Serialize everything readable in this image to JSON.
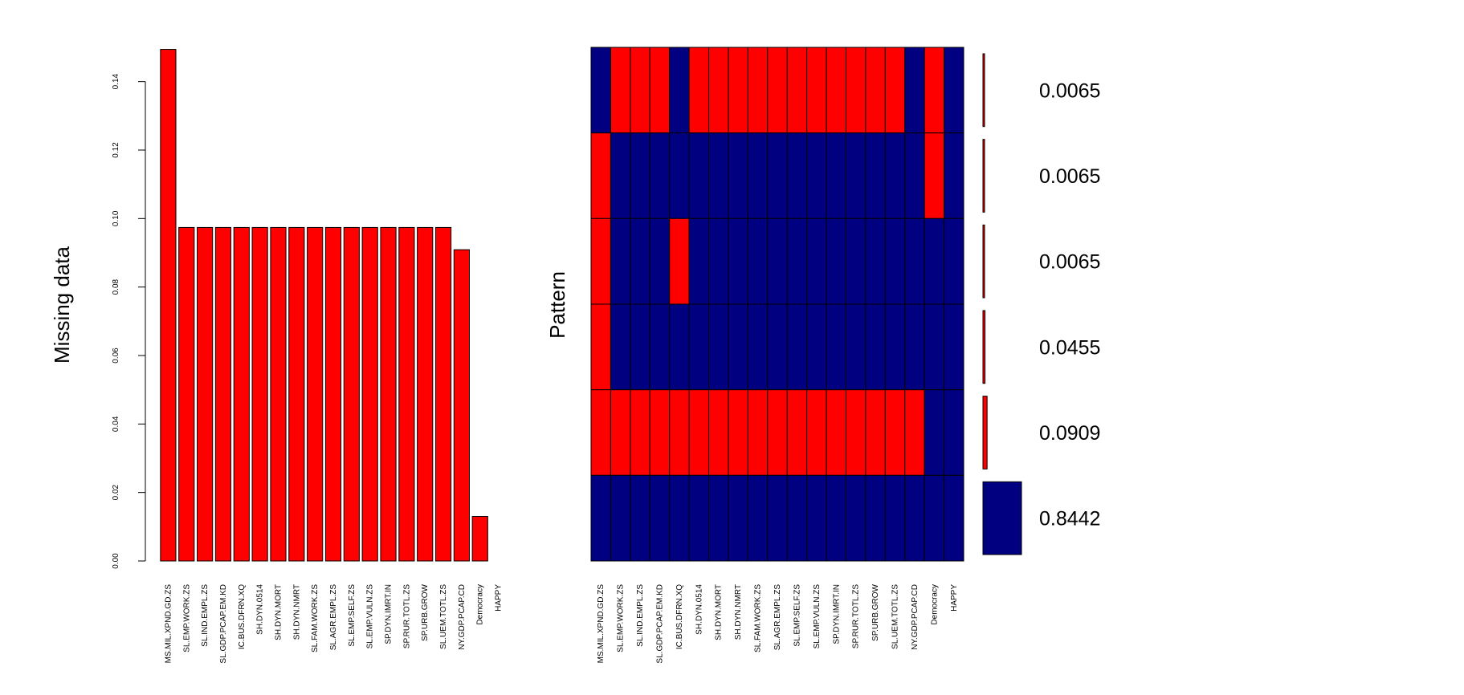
{
  "colors": {
    "missing": "#ff0000",
    "observed": "#000080",
    "border": "#000000",
    "background": "#ffffff"
  },
  "chart_data": [
    {
      "type": "bar",
      "ylabel": "Missing data",
      "xlabel": "",
      "ylim": [
        0,
        0.15
      ],
      "yticks": [
        "0.00",
        "0.02",
        "0.04",
        "0.06",
        "0.08",
        "0.10",
        "0.12",
        "0.14"
      ],
      "categories": [
        "MS.MIL.XPND.GD.ZS",
        "SL.EMP.WORK.ZS",
        "SL.IND.EMPL.ZS",
        "SL.GDP.PCAP.EM.KD",
        "IC.BUS.DFRN.XQ",
        "SH.DYN.0514",
        "SH.DYN.MORT",
        "SH.DYN.NMRT",
        "SL.FAM.WORK.ZS",
        "SL.AGR.EMPL.ZS",
        "SL.EMP.SELF.ZS",
        "SL.EMP.VULN.ZS",
        "SP.DYN.IMRT.IN",
        "SP.RUR.TOTL.ZS",
        "SP.URB.GROW",
        "SL.UEM.TOTL.ZS",
        "NY.GDP.PCAP.CD",
        "Democracy",
        "HAPPY"
      ],
      "values": [
        0.1494,
        0.0974,
        0.0974,
        0.0974,
        0.0974,
        0.0974,
        0.0974,
        0.0974,
        0.0974,
        0.0974,
        0.0974,
        0.0974,
        0.0974,
        0.0974,
        0.0974,
        0.0974,
        0.0909,
        0.013,
        0.0
      ]
    },
    {
      "type": "heatmap",
      "ylabel": "Pattern",
      "xlabel": "",
      "columns": [
        "MS.MIL.XPND.GD.ZS",
        "SL.EMP.WORK.ZS",
        "SL.IND.EMPL.ZS",
        "SL.GDP.PCAP.EM.KD",
        "IC.BUS.DFRN.XQ",
        "SH.DYN.0514",
        "SH.DYN.MORT",
        "SH.DYN.NMRT",
        "SL.FAM.WORK.ZS",
        "SL.AGR.EMPL.ZS",
        "SL.EMP.SELF.ZS",
        "SL.EMP.VULN.ZS",
        "SP.DYN.IMRT.IN",
        "SP.RUR.TOTL.ZS",
        "SP.URB.GROW",
        "SL.UEM.TOTL.ZS",
        "NY.GDP.PCAP.CD",
        "Democracy",
        "HAPPY"
      ],
      "patterns": [
        {
          "proportion": 0.0065,
          "label": "0.0065",
          "missing": [
            0,
            1,
            1,
            1,
            0,
            1,
            1,
            1,
            1,
            1,
            1,
            1,
            1,
            1,
            1,
            1,
            0,
            1,
            0
          ]
        },
        {
          "proportion": 0.0065,
          "label": "0.0065",
          "missing": [
            1,
            0,
            0,
            0,
            0,
            0,
            0,
            0,
            0,
            0,
            0,
            0,
            0,
            0,
            0,
            0,
            0,
            1,
            0
          ]
        },
        {
          "proportion": 0.0065,
          "label": "0.0065",
          "missing": [
            1,
            0,
            0,
            0,
            1,
            0,
            0,
            0,
            0,
            0,
            0,
            0,
            0,
            0,
            0,
            0,
            0,
            0,
            0
          ]
        },
        {
          "proportion": 0.0455,
          "label": "0.0455",
          "missing": [
            1,
            0,
            0,
            0,
            0,
            0,
            0,
            0,
            0,
            0,
            0,
            0,
            0,
            0,
            0,
            0,
            0,
            0,
            0
          ]
        },
        {
          "proportion": 0.0909,
          "label": "0.0909",
          "missing": [
            1,
            1,
            1,
            1,
            1,
            1,
            1,
            1,
            1,
            1,
            1,
            1,
            1,
            1,
            1,
            1,
            1,
            0,
            0
          ]
        },
        {
          "proportion": 0.8442,
          "label": "0.8442",
          "missing": [
            0,
            0,
            0,
            0,
            0,
            0,
            0,
            0,
            0,
            0,
            0,
            0,
            0,
            0,
            0,
            0,
            0,
            0,
            0
          ]
        }
      ]
    }
  ]
}
